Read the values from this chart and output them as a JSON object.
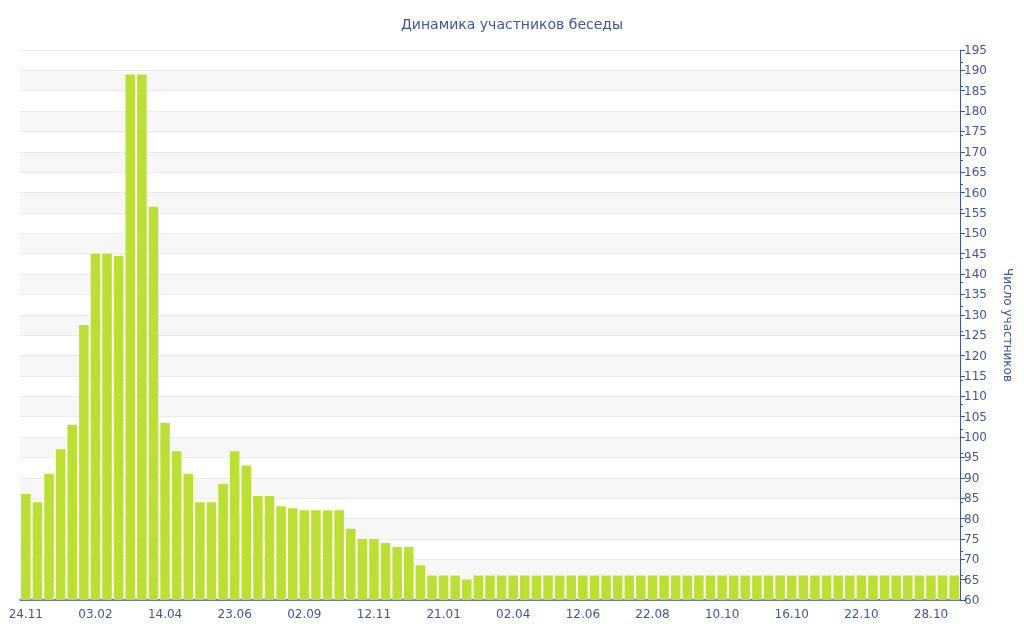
{
  "chart_data": {
    "type": "bar",
    "title": "Динамика участников беседы",
    "ylabel": "Число участников",
    "categories": [
      "24.11",
      null,
      null,
      null,
      null,
      null,
      "03.02",
      null,
      null,
      null,
      null,
      null,
      "14.04",
      null,
      null,
      null,
      null,
      null,
      "23.06",
      null,
      null,
      null,
      null,
      null,
      "02.09",
      null,
      null,
      null,
      null,
      null,
      "12.11",
      null,
      null,
      null,
      null,
      null,
      "21.01",
      null,
      null,
      null,
      null,
      null,
      "02.04",
      null,
      null,
      null,
      null,
      null,
      "12.06",
      null,
      null,
      null,
      null,
      null,
      "22.08",
      null,
      null,
      null,
      null,
      null,
      "10.10",
      null,
      null,
      null,
      null,
      null,
      "16.10",
      null,
      null,
      null,
      null,
      null,
      "22.10",
      null,
      null,
      null,
      null,
      null,
      "28.10",
      null,
      null
    ],
    "values": [
      86,
      84,
      91,
      97,
      103,
      127.5,
      145,
      145,
      144.5,
      189,
      189,
      156.5,
      103.5,
      96.5,
      91,
      84,
      84,
      88.5,
      96.5,
      93,
      85.5,
      85.5,
      83,
      82.5,
      82,
      82,
      82,
      82,
      77.5,
      75,
      75,
      74,
      73,
      73,
      68.5,
      66,
      66,
      66,
      65,
      66,
      66,
      66,
      66,
      66,
      66,
      66,
      66,
      66,
      66,
      66,
      66,
      66,
      66,
      66,
      66,
      66,
      66,
      66,
      66,
      66,
      66,
      66,
      66,
      66,
      66,
      66,
      66,
      66,
      66,
      66,
      66,
      66,
      66,
      66,
      66,
      66,
      66,
      66,
      66,
      66,
      66
    ],
    "color": "#bce032",
    "ylim": [
      60,
      195
    ],
    "yticks": [
      60,
      65,
      70,
      75,
      80,
      85,
      90,
      95,
      100,
      105,
      110,
      115,
      120,
      125,
      130,
      135,
      140,
      145,
      150,
      155,
      160,
      165,
      170,
      175,
      180,
      185,
      190,
      195
    ],
    "grid": "y"
  }
}
